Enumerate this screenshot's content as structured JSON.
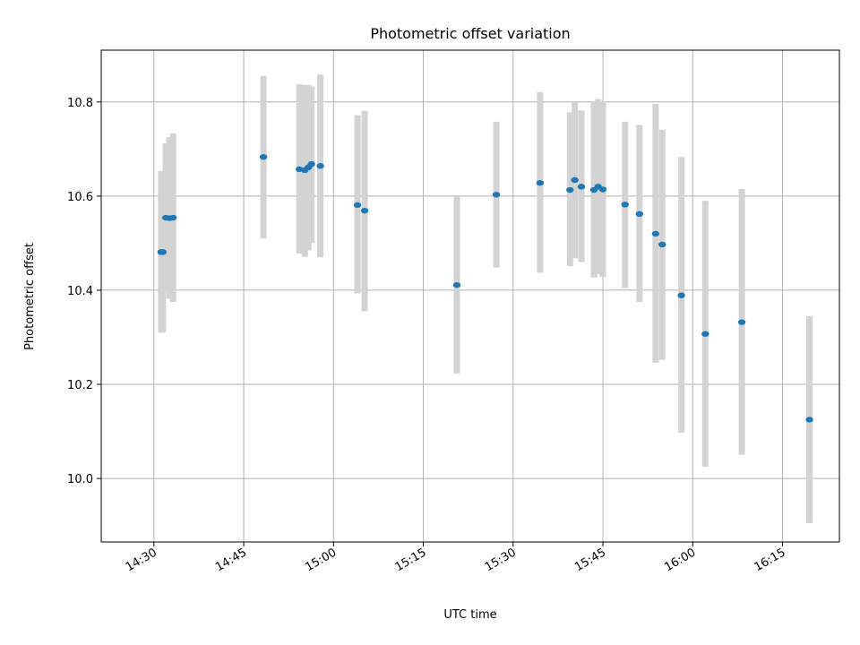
{
  "chart_data": {
    "type": "scatter",
    "title": "Photometric offset variation",
    "xlabel": "UTC time",
    "ylabel": "Photometric offset",
    "grid": true,
    "xlim": [
      "14:21.2",
      "16:24.5"
    ],
    "ylim": [
      9.865,
      10.91
    ],
    "x_ticks": [
      "14:30",
      "14:45",
      "15:00",
      "15:15",
      "15:30",
      "15:45",
      "16:00",
      "16:15"
    ],
    "y_ticks": [
      "10.0",
      "10.2",
      "10.4",
      "10.6",
      "10.8"
    ],
    "errorbar_color": "#d3d3d3",
    "point_color": "#1f77b4",
    "points": [
      {
        "t": "14:31.2",
        "y": 10.481,
        "lo": 10.31,
        "hi": 10.653
      },
      {
        "t": "14:31.5",
        "y": 10.481,
        "lo": 10.31,
        "hi": 10.653
      },
      {
        "t": "14:32.0",
        "y": 10.554,
        "lo": 10.398,
        "hi": 10.712
      },
      {
        "t": "14:32.6",
        "y": 10.553,
        "lo": 10.382,
        "hi": 10.725
      },
      {
        "t": "14:33.2",
        "y": 10.554,
        "lo": 10.375,
        "hi": 10.733
      },
      {
        "t": "14:48.3",
        "y": 10.683,
        "lo": 10.51,
        "hi": 10.855
      },
      {
        "t": "14:54.3",
        "y": 10.657,
        "lo": 10.478,
        "hi": 10.838
      },
      {
        "t": "14:55.2",
        "y": 10.655,
        "lo": 10.471,
        "hi": 10.836
      },
      {
        "t": "14:55.8",
        "y": 10.661,
        "lo": 10.485,
        "hi": 10.836
      },
      {
        "t": "14:56.3",
        "y": 10.668,
        "lo": 10.5,
        "hi": 10.833
      },
      {
        "t": "14:57.8",
        "y": 10.664,
        "lo": 10.47,
        "hi": 10.858
      },
      {
        "t": "15:04.0",
        "y": 10.581,
        "lo": 10.393,
        "hi": 10.772
      },
      {
        "t": "15:05.2",
        "y": 10.569,
        "lo": 10.355,
        "hi": 10.781
      },
      {
        "t": "15:20.6",
        "y": 10.411,
        "lo": 10.223,
        "hi": 10.6
      },
      {
        "t": "15:27.2",
        "y": 10.603,
        "lo": 10.448,
        "hi": 10.758
      },
      {
        "t": "15:34.5",
        "y": 10.628,
        "lo": 10.437,
        "hi": 10.821
      },
      {
        "t": "15:39.5",
        "y": 10.613,
        "lo": 10.451,
        "hi": 10.778
      },
      {
        "t": "15:40.3",
        "y": 10.634,
        "lo": 10.468,
        "hi": 10.8
      },
      {
        "t": "15:41.4",
        "y": 10.62,
        "lo": 10.46,
        "hi": 10.782
      },
      {
        "t": "15:43.5",
        "y": 10.613,
        "lo": 10.427,
        "hi": 10.801
      },
      {
        "t": "15:44.2",
        "y": 10.62,
        "lo": 10.434,
        "hi": 10.806
      },
      {
        "t": "15:45.0",
        "y": 10.614,
        "lo": 10.428,
        "hi": 10.801
      },
      {
        "t": "15:48.7",
        "y": 10.582,
        "lo": 10.405,
        "hi": 10.758
      },
      {
        "t": "15:51.1",
        "y": 10.562,
        "lo": 10.375,
        "hi": 10.751
      },
      {
        "t": "15:53.8",
        "y": 10.52,
        "lo": 10.246,
        "hi": 10.796
      },
      {
        "t": "15:54.9",
        "y": 10.497,
        "lo": 10.252,
        "hi": 10.741
      },
      {
        "t": "15:58.1",
        "y": 10.389,
        "lo": 10.097,
        "hi": 10.683
      },
      {
        "t": "16:02.1",
        "y": 10.307,
        "lo": 10.025,
        "hi": 10.59
      },
      {
        "t": "16:08.2",
        "y": 10.332,
        "lo": 10.05,
        "hi": 10.615
      },
      {
        "t": "16:19.5",
        "y": 10.125,
        "lo": 9.905,
        "hi": 10.345
      }
    ]
  }
}
